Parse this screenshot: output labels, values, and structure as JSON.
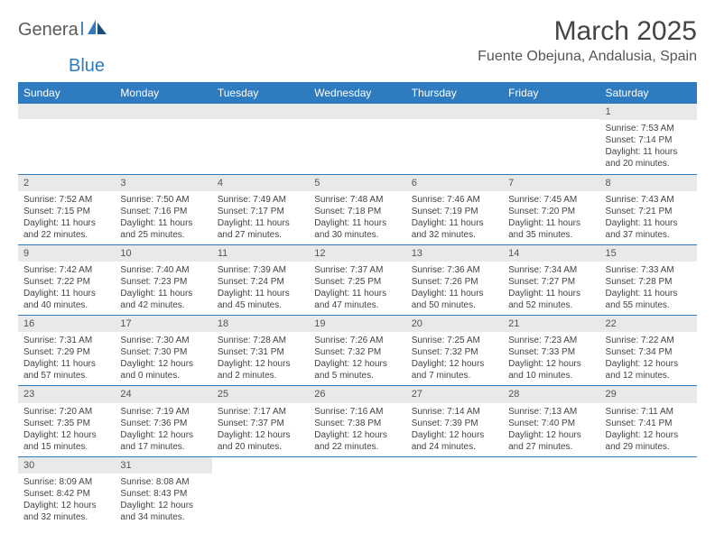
{
  "colors": {
    "header_bg": "#2f7bbf",
    "header_text": "#ffffff",
    "daynum_bg": "#e9e9e9",
    "border": "#2f7bbf",
    "title_color": "#444444",
    "body_text": "#444444",
    "logo_dark": "#5a5a5a",
    "logo_blue": "#2f7bbf"
  },
  "logo": {
    "dark": "Genera",
    "blue": "Blue"
  },
  "title": "March 2025",
  "location": "Fuente Obejuna, Andalusia, Spain",
  "day_headers": [
    "Sunday",
    "Monday",
    "Tuesday",
    "Wednesday",
    "Thursday",
    "Friday",
    "Saturday"
  ],
  "weeks": [
    [
      {
        "blank": true
      },
      {
        "blank": true
      },
      {
        "blank": true
      },
      {
        "blank": true
      },
      {
        "blank": true
      },
      {
        "blank": true
      },
      {
        "n": "1",
        "sr": "Sunrise: 7:53 AM",
        "ss": "Sunset: 7:14 PM",
        "d1": "Daylight: 11 hours",
        "d2": "and 20 minutes."
      }
    ],
    [
      {
        "n": "2",
        "sr": "Sunrise: 7:52 AM",
        "ss": "Sunset: 7:15 PM",
        "d1": "Daylight: 11 hours",
        "d2": "and 22 minutes."
      },
      {
        "n": "3",
        "sr": "Sunrise: 7:50 AM",
        "ss": "Sunset: 7:16 PM",
        "d1": "Daylight: 11 hours",
        "d2": "and 25 minutes."
      },
      {
        "n": "4",
        "sr": "Sunrise: 7:49 AM",
        "ss": "Sunset: 7:17 PM",
        "d1": "Daylight: 11 hours",
        "d2": "and 27 minutes."
      },
      {
        "n": "5",
        "sr": "Sunrise: 7:48 AM",
        "ss": "Sunset: 7:18 PM",
        "d1": "Daylight: 11 hours",
        "d2": "and 30 minutes."
      },
      {
        "n": "6",
        "sr": "Sunrise: 7:46 AM",
        "ss": "Sunset: 7:19 PM",
        "d1": "Daylight: 11 hours",
        "d2": "and 32 minutes."
      },
      {
        "n": "7",
        "sr": "Sunrise: 7:45 AM",
        "ss": "Sunset: 7:20 PM",
        "d1": "Daylight: 11 hours",
        "d2": "and 35 minutes."
      },
      {
        "n": "8",
        "sr": "Sunrise: 7:43 AM",
        "ss": "Sunset: 7:21 PM",
        "d1": "Daylight: 11 hours",
        "d2": "and 37 minutes."
      }
    ],
    [
      {
        "n": "9",
        "sr": "Sunrise: 7:42 AM",
        "ss": "Sunset: 7:22 PM",
        "d1": "Daylight: 11 hours",
        "d2": "and 40 minutes."
      },
      {
        "n": "10",
        "sr": "Sunrise: 7:40 AM",
        "ss": "Sunset: 7:23 PM",
        "d1": "Daylight: 11 hours",
        "d2": "and 42 minutes."
      },
      {
        "n": "11",
        "sr": "Sunrise: 7:39 AM",
        "ss": "Sunset: 7:24 PM",
        "d1": "Daylight: 11 hours",
        "d2": "and 45 minutes."
      },
      {
        "n": "12",
        "sr": "Sunrise: 7:37 AM",
        "ss": "Sunset: 7:25 PM",
        "d1": "Daylight: 11 hours",
        "d2": "and 47 minutes."
      },
      {
        "n": "13",
        "sr": "Sunrise: 7:36 AM",
        "ss": "Sunset: 7:26 PM",
        "d1": "Daylight: 11 hours",
        "d2": "and 50 minutes."
      },
      {
        "n": "14",
        "sr": "Sunrise: 7:34 AM",
        "ss": "Sunset: 7:27 PM",
        "d1": "Daylight: 11 hours",
        "d2": "and 52 minutes."
      },
      {
        "n": "15",
        "sr": "Sunrise: 7:33 AM",
        "ss": "Sunset: 7:28 PM",
        "d1": "Daylight: 11 hours",
        "d2": "and 55 minutes."
      }
    ],
    [
      {
        "n": "16",
        "sr": "Sunrise: 7:31 AM",
        "ss": "Sunset: 7:29 PM",
        "d1": "Daylight: 11 hours",
        "d2": "and 57 minutes."
      },
      {
        "n": "17",
        "sr": "Sunrise: 7:30 AM",
        "ss": "Sunset: 7:30 PM",
        "d1": "Daylight: 12 hours",
        "d2": "and 0 minutes."
      },
      {
        "n": "18",
        "sr": "Sunrise: 7:28 AM",
        "ss": "Sunset: 7:31 PM",
        "d1": "Daylight: 12 hours",
        "d2": "and 2 minutes."
      },
      {
        "n": "19",
        "sr": "Sunrise: 7:26 AM",
        "ss": "Sunset: 7:32 PM",
        "d1": "Daylight: 12 hours",
        "d2": "and 5 minutes."
      },
      {
        "n": "20",
        "sr": "Sunrise: 7:25 AM",
        "ss": "Sunset: 7:32 PM",
        "d1": "Daylight: 12 hours",
        "d2": "and 7 minutes."
      },
      {
        "n": "21",
        "sr": "Sunrise: 7:23 AM",
        "ss": "Sunset: 7:33 PM",
        "d1": "Daylight: 12 hours",
        "d2": "and 10 minutes."
      },
      {
        "n": "22",
        "sr": "Sunrise: 7:22 AM",
        "ss": "Sunset: 7:34 PM",
        "d1": "Daylight: 12 hours",
        "d2": "and 12 minutes."
      }
    ],
    [
      {
        "n": "23",
        "sr": "Sunrise: 7:20 AM",
        "ss": "Sunset: 7:35 PM",
        "d1": "Daylight: 12 hours",
        "d2": "and 15 minutes."
      },
      {
        "n": "24",
        "sr": "Sunrise: 7:19 AM",
        "ss": "Sunset: 7:36 PM",
        "d1": "Daylight: 12 hours",
        "d2": "and 17 minutes."
      },
      {
        "n": "25",
        "sr": "Sunrise: 7:17 AM",
        "ss": "Sunset: 7:37 PM",
        "d1": "Daylight: 12 hours",
        "d2": "and 20 minutes."
      },
      {
        "n": "26",
        "sr": "Sunrise: 7:16 AM",
        "ss": "Sunset: 7:38 PM",
        "d1": "Daylight: 12 hours",
        "d2": "and 22 minutes."
      },
      {
        "n": "27",
        "sr": "Sunrise: 7:14 AM",
        "ss": "Sunset: 7:39 PM",
        "d1": "Daylight: 12 hours",
        "d2": "and 24 minutes."
      },
      {
        "n": "28",
        "sr": "Sunrise: 7:13 AM",
        "ss": "Sunset: 7:40 PM",
        "d1": "Daylight: 12 hours",
        "d2": "and 27 minutes."
      },
      {
        "n": "29",
        "sr": "Sunrise: 7:11 AM",
        "ss": "Sunset: 7:41 PM",
        "d1": "Daylight: 12 hours",
        "d2": "and 29 minutes."
      }
    ],
    [
      {
        "n": "30",
        "sr": "Sunrise: 8:09 AM",
        "ss": "Sunset: 8:42 PM",
        "d1": "Daylight: 12 hours",
        "d2": "and 32 minutes."
      },
      {
        "n": "31",
        "sr": "Sunrise: 8:08 AM",
        "ss": "Sunset: 8:43 PM",
        "d1": "Daylight: 12 hours",
        "d2": "and 34 minutes."
      },
      {
        "trail": true
      },
      {
        "trail": true
      },
      {
        "trail": true
      },
      {
        "trail": true
      },
      {
        "trail": true
      }
    ]
  ]
}
